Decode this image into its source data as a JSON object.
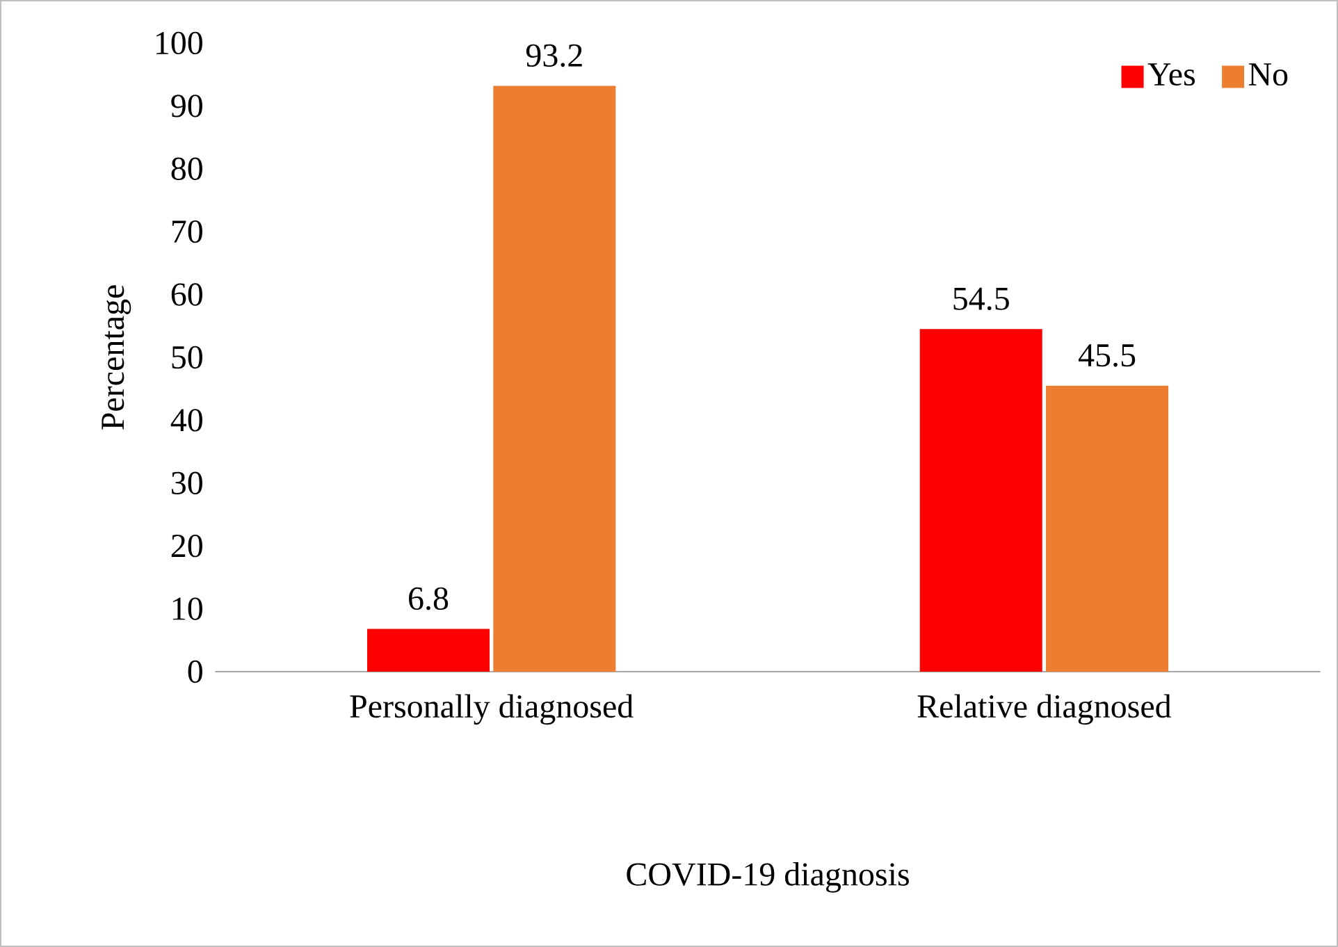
{
  "chart_data": {
    "type": "bar",
    "xlabel": "COVID-19 diagnosis",
    "ylabel": "Percentage",
    "categories": [
      "Personally diagnosed",
      "Relative diagnosed"
    ],
    "series": [
      {
        "name": "Yes",
        "color": "#ff0000",
        "values": [
          6.8,
          54.5
        ]
      },
      {
        "name": "No",
        "color": "#ed7d31",
        "values": [
          93.2,
          45.5
        ]
      }
    ],
    "ylim": [
      0,
      100
    ],
    "yticks": [
      0,
      10,
      20,
      30,
      40,
      50,
      60,
      70,
      80,
      90,
      100
    ],
    "grid": false,
    "legend": "top right",
    "data_labels": true
  }
}
